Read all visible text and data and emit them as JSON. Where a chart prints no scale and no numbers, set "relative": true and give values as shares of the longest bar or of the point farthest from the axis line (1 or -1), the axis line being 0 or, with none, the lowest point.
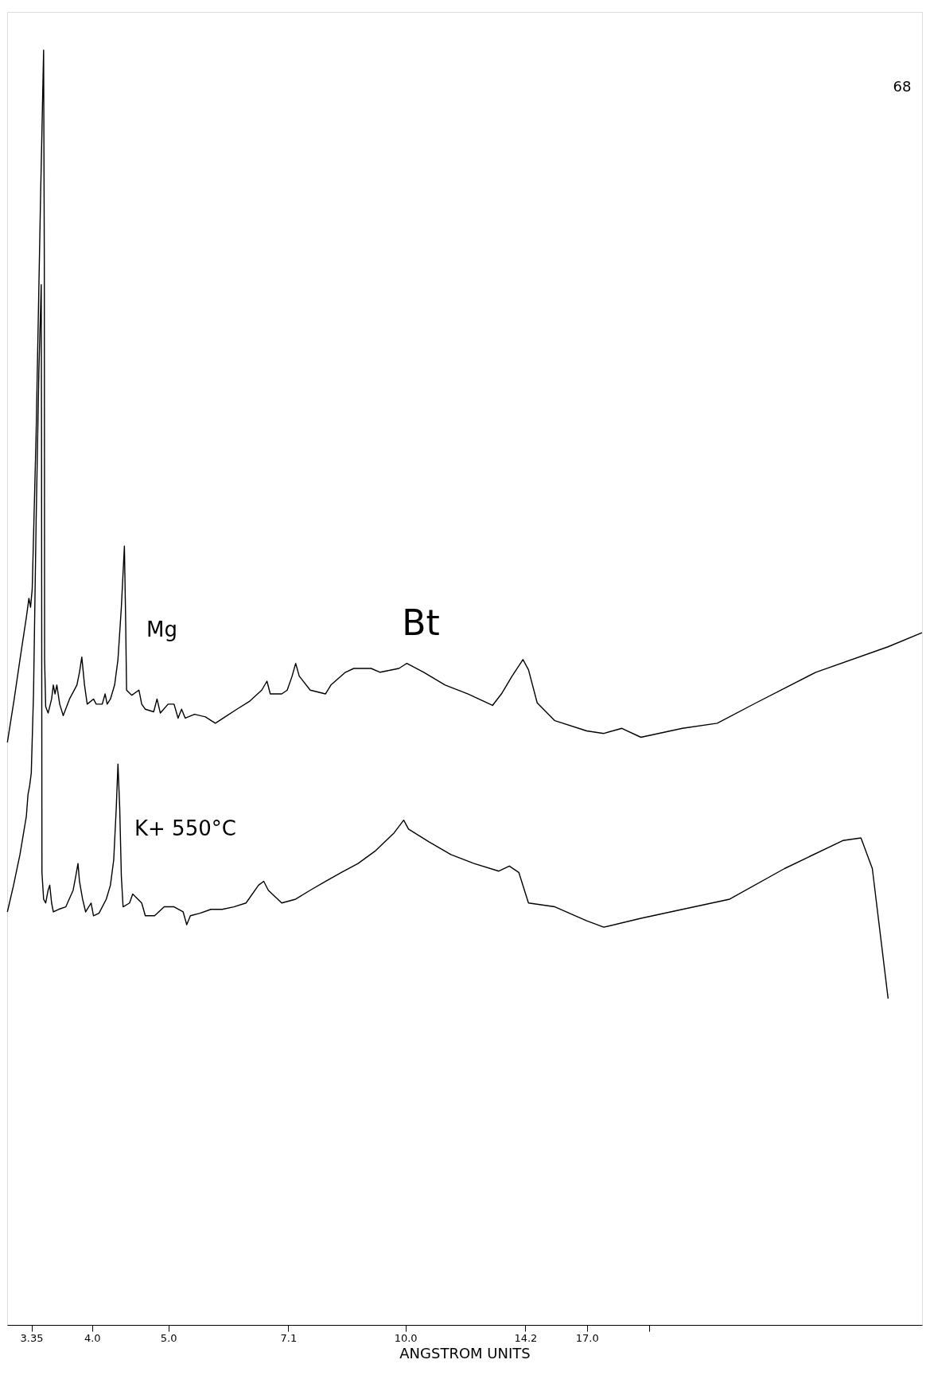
{
  "chart_data": {
    "type": "line",
    "relative": true,
    "xlabel": "ANGSTROM UNITS",
    "tick_labels": "x",
    "line_style": "solid",
    "log": "x",
    "xlim": [
      3.12,
      45.3
    ],
    "xticks": [
      3.35,
      {
        "value": 4,
        "label": "4.0"
      },
      {
        "value": 5,
        "label": "5.0"
      },
      7.1,
      {
        "value": 10,
        "label": "10.0"
      },
      14.2,
      {
        "value": 17,
        "label": "17.0"
      },
      {
        "value": 20.4,
        "label": null
      }
    ],
    "annotations": [
      "Bt",
      "68"
    ],
    "series": [
      {
        "name": "Mg",
        "color": "#000000",
        "x": [
          3.122,
          3.185,
          3.239,
          3.3,
          3.325,
          3.341,
          3.357,
          3.396,
          3.44,
          3.471,
          3.478,
          3.481,
          3.492,
          3.517,
          3.553,
          3.571,
          3.589,
          3.608,
          3.638,
          3.676,
          3.744,
          3.826,
          3.855,
          3.881,
          3.912,
          3.943,
          4.016,
          4.048,
          4.12,
          4.155,
          4.18,
          4.22,
          4.272,
          4.314,
          4.357,
          4.396,
          4.413,
          4.424,
          4.492,
          4.587,
          4.624,
          4.673,
          4.789,
          4.836,
          4.883,
          4.995,
          5.083,
          5.143,
          5.196,
          5.252,
          5.398,
          5.571,
          5.736,
          5.901,
          6.108,
          6.331,
          6.569,
          6.67,
          6.735,
          6.964,
          7.077,
          7.179,
          7.254,
          7.33,
          7.569,
          7.914,
          8.042,
          8.391,
          8.598,
          9.045,
          9.286,
          9.81,
          10.04,
          10.55,
          11.23,
          12.01,
          12.9,
          13.24,
          13.66,
          14.1,
          14.33,
          14.7,
          15.48,
          16.99,
          17.86,
          18.83,
          19.91,
          22.48,
          24.89,
          27.88,
          33.2,
          41.02,
          45.29
        ],
        "values": [
          0.457,
          0.491,
          0.522,
          0.555,
          0.57,
          0.563,
          0.577,
          0.7,
          0.884,
          1.0,
          0.836,
          0.522,
          0.485,
          0.48,
          0.491,
          0.502,
          0.495,
          0.502,
          0.487,
          0.478,
          0.491,
          0.502,
          0.512,
          0.524,
          0.502,
          0.487,
          0.491,
          0.487,
          0.487,
          0.495,
          0.487,
          0.491,
          0.502,
          0.522,
          0.563,
          0.611,
          0.549,
          0.498,
          0.494,
          0.498,
          0.487,
          0.483,
          0.481,
          0.491,
          0.48,
          0.487,
          0.487,
          0.476,
          0.483,
          0.476,
          0.479,
          0.477,
          0.472,
          0.477,
          0.483,
          0.489,
          0.498,
          0.505,
          0.495,
          0.495,
          0.498,
          0.509,
          0.519,
          0.509,
          0.498,
          0.495,
          0.502,
          0.512,
          0.515,
          0.515,
          0.512,
          0.515,
          0.519,
          0.512,
          0.502,
          0.495,
          0.486,
          0.495,
          0.509,
          0.522,
          0.514,
          0.488,
          0.474,
          0.466,
          0.464,
          0.468,
          0.461,
          0.468,
          0.472,
          0.488,
          0.512,
          0.532,
          0.543
        ]
      },
      {
        "name": "K+ 550°C",
        "color": "#000000",
        "x": [
          3.122,
          3.179,
          3.239,
          3.3,
          3.316,
          3.332,
          3.348,
          3.37,
          3.396,
          3.423,
          3.447,
          3.45,
          3.454,
          3.471,
          3.492,
          3.517,
          3.534,
          3.553,
          3.571,
          3.626,
          3.704,
          3.784,
          3.813,
          3.838,
          3.855,
          3.89,
          3.925,
          3.988,
          4.016,
          4.081,
          4.169,
          4.22,
          4.261,
          4.293,
          4.314,
          4.336,
          4.357,
          4.379,
          4.463,
          4.504,
          4.624,
          4.673,
          4.802,
          4.939,
          5.083,
          5.22,
          5.275,
          5.332,
          5.483,
          5.661,
          5.852,
          6.055,
          6.274,
          6.508,
          6.607,
          6.696,
          6.964,
          7.254,
          7.569,
          7.914,
          8.291,
          8.706,
          9.163,
          9.673,
          9.949,
          10.09,
          10.71,
          11.42,
          12.22,
          13.14,
          13.55,
          13.93,
          14.33,
          15.48,
          16.99,
          17.86,
          19.91,
          22.48,
          25.81,
          30.3,
          35.93,
          37.89,
          39.17,
          41.02
        ],
        "values": [
          0.324,
          0.345,
          0.369,
          0.399,
          0.416,
          0.423,
          0.433,
          0.495,
          0.631,
          0.747,
          0.816,
          0.7,
          0.355,
          0.334,
          0.331,
          0.341,
          0.345,
          0.331,
          0.324,
          0.326,
          0.328,
          0.341,
          0.352,
          0.362,
          0.348,
          0.334,
          0.324,
          0.331,
          0.321,
          0.323,
          0.334,
          0.345,
          0.365,
          0.406,
          0.44,
          0.406,
          0.352,
          0.328,
          0.331,
          0.338,
          0.331,
          0.321,
          0.321,
          0.328,
          0.328,
          0.324,
          0.314,
          0.321,
          0.323,
          0.326,
          0.326,
          0.328,
          0.331,
          0.345,
          0.348,
          0.341,
          0.331,
          0.334,
          0.341,
          0.348,
          0.355,
          0.362,
          0.372,
          0.386,
          0.396,
          0.389,
          0.379,
          0.369,
          0.362,
          0.356,
          0.36,
          0.355,
          0.331,
          0.328,
          0.317,
          0.312,
          0.319,
          0.326,
          0.334,
          0.358,
          0.38,
          0.382,
          0.358,
          0.256
        ]
      }
    ]
  }
}
